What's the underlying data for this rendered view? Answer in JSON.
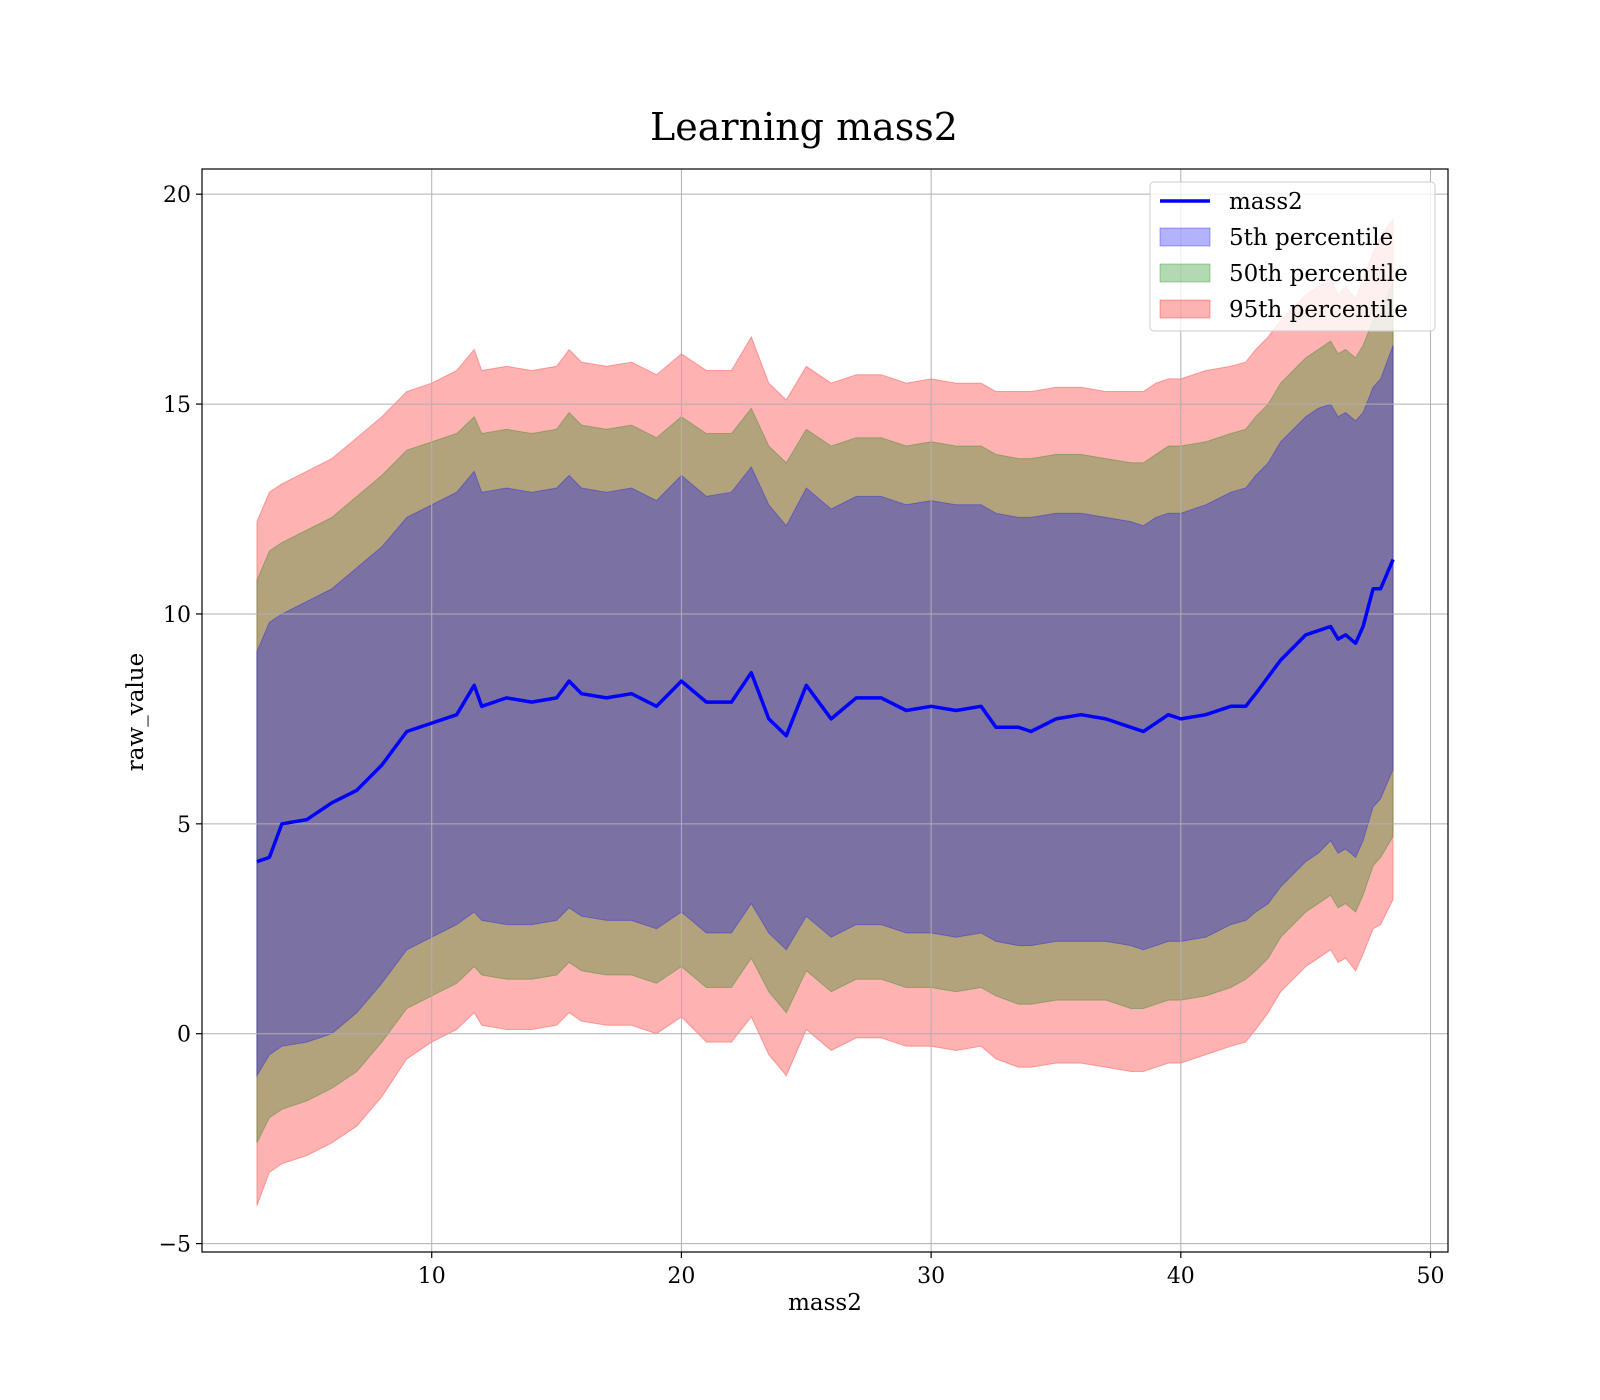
{
  "chart_data": {
    "type": "line",
    "title": "Learning mass2",
    "xlabel": "mass2",
    "ylabel": "raw_value",
    "xlim": [
      0.8,
      50.7
    ],
    "ylim": [
      -5.2,
      20.6
    ],
    "xticks": [
      10,
      20,
      30,
      40,
      50
    ],
    "yticks": [
      -5,
      0,
      5,
      10,
      15,
      20
    ],
    "xtick_labels": [
      "10",
      "20",
      "30",
      "40",
      "50"
    ],
    "ytick_labels": [
      "−5",
      "0",
      "5",
      "10",
      "15",
      "20"
    ],
    "grid": true,
    "legend_position": "top-right",
    "x": [
      3.0,
      3.5,
      4.0,
      5.0,
      6.0,
      7.0,
      8.0,
      9.0,
      10.0,
      11.0,
      11.7,
      12.0,
      13.0,
      14.0,
      15.0,
      15.5,
      16.0,
      17.0,
      18.0,
      19.0,
      20.0,
      21.0,
      22.0,
      22.8,
      23.5,
      24.2,
      25.0,
      26.0,
      27.0,
      28.0,
      29.0,
      30.0,
      31.0,
      32.0,
      32.6,
      33.5,
      34.0,
      35.0,
      36.0,
      37.0,
      38.0,
      38.5,
      39.0,
      39.5,
      40.0,
      41.0,
      42.0,
      42.6,
      43.0,
      43.5,
      44.0,
      44.5,
      45.0,
      45.5,
      46.0,
      46.3,
      46.6,
      47.0,
      47.3,
      47.7,
      48.0,
      48.5
    ],
    "series": [
      {
        "name": "mass2",
        "color": "#0000ff",
        "values": [
          4.1,
          4.2,
          5.0,
          5.1,
          5.5,
          5.8,
          6.4,
          7.2,
          7.4,
          7.6,
          8.3,
          7.8,
          8.0,
          7.9,
          8.0,
          8.4,
          8.1,
          8.0,
          8.1,
          7.8,
          8.4,
          7.9,
          7.9,
          8.6,
          7.5,
          7.1,
          8.3,
          7.5,
          8.0,
          8.0,
          7.7,
          7.8,
          7.7,
          7.8,
          7.3,
          7.3,
          7.2,
          7.5,
          7.6,
          7.5,
          7.3,
          7.2,
          7.4,
          7.6,
          7.5,
          7.6,
          7.8,
          7.8,
          8.1,
          8.5,
          8.9,
          9.2,
          9.5,
          9.6,
          9.7,
          9.4,
          9.5,
          9.3,
          9.7,
          10.6,
          10.6,
          11.3
        ]
      }
    ],
    "bands": [
      {
        "name": "5th percentile",
        "color": "#0000ff",
        "lower": [
          -1.0,
          -0.5,
          -0.3,
          -0.2,
          0.0,
          0.5,
          1.2,
          2.0,
          2.3,
          2.6,
          2.9,
          2.7,
          2.6,
          2.6,
          2.7,
          3.0,
          2.8,
          2.7,
          2.7,
          2.5,
          2.9,
          2.4,
          2.4,
          3.1,
          2.4,
          2.0,
          2.8,
          2.3,
          2.6,
          2.6,
          2.4,
          2.4,
          2.3,
          2.4,
          2.2,
          2.1,
          2.1,
          2.2,
          2.2,
          2.2,
          2.1,
          2.0,
          2.1,
          2.2,
          2.2,
          2.3,
          2.6,
          2.7,
          2.9,
          3.1,
          3.5,
          3.8,
          4.1,
          4.3,
          4.6,
          4.3,
          4.4,
          4.2,
          4.6,
          5.4,
          5.6,
          6.3
        ],
        "upper": [
          9.1,
          9.8,
          10.0,
          10.3,
          10.6,
          11.1,
          11.6,
          12.3,
          12.6,
          12.9,
          13.4,
          12.9,
          13.0,
          12.9,
          13.0,
          13.3,
          13.0,
          12.9,
          13.0,
          12.7,
          13.3,
          12.8,
          12.9,
          13.5,
          12.6,
          12.1,
          13.0,
          12.5,
          12.8,
          12.8,
          12.6,
          12.7,
          12.6,
          12.6,
          12.4,
          12.3,
          12.3,
          12.4,
          12.4,
          12.3,
          12.2,
          12.1,
          12.3,
          12.4,
          12.4,
          12.6,
          12.9,
          13.0,
          13.3,
          13.6,
          14.1,
          14.4,
          14.7,
          14.9,
          15.0,
          14.7,
          14.8,
          14.6,
          14.8,
          15.4,
          15.6,
          16.4
        ]
      },
      {
        "name": "50th percentile",
        "color": "#008000",
        "lower": [
          -2.6,
          -2.0,
          -1.8,
          -1.6,
          -1.3,
          -0.9,
          -0.2,
          0.6,
          0.9,
          1.2,
          1.6,
          1.4,
          1.3,
          1.3,
          1.4,
          1.7,
          1.5,
          1.4,
          1.4,
          1.2,
          1.6,
          1.1,
          1.1,
          1.8,
          1.0,
          0.5,
          1.5,
          1.0,
          1.3,
          1.3,
          1.1,
          1.1,
          1.0,
          1.1,
          0.9,
          0.7,
          0.7,
          0.8,
          0.8,
          0.8,
          0.6,
          0.6,
          0.7,
          0.8,
          0.8,
          0.9,
          1.1,
          1.3,
          1.5,
          1.8,
          2.3,
          2.6,
          2.9,
          3.1,
          3.3,
          3.0,
          3.1,
          2.9,
          3.3,
          4.0,
          4.2,
          4.7
        ],
        "upper": [
          10.8,
          11.5,
          11.7,
          12.0,
          12.3,
          12.8,
          13.3,
          13.9,
          14.1,
          14.3,
          14.7,
          14.3,
          14.4,
          14.3,
          14.4,
          14.8,
          14.5,
          14.4,
          14.5,
          14.2,
          14.7,
          14.3,
          14.3,
          14.9,
          14.0,
          13.6,
          14.4,
          14.0,
          14.2,
          14.2,
          14.0,
          14.1,
          14.0,
          14.0,
          13.8,
          13.7,
          13.7,
          13.8,
          13.8,
          13.7,
          13.6,
          13.6,
          13.8,
          14.0,
          14.0,
          14.1,
          14.3,
          14.4,
          14.7,
          15.0,
          15.5,
          15.8,
          16.1,
          16.3,
          16.5,
          16.2,
          16.3,
          16.1,
          16.4,
          17.0,
          17.2,
          17.9
        ]
      },
      {
        "name": "95th percentile",
        "color": "#ff0000",
        "lower": [
          -4.1,
          -3.3,
          -3.1,
          -2.9,
          -2.6,
          -2.2,
          -1.5,
          -0.6,
          -0.2,
          0.1,
          0.5,
          0.2,
          0.1,
          0.1,
          0.2,
          0.5,
          0.3,
          0.2,
          0.2,
          0.0,
          0.4,
          -0.2,
          -0.2,
          0.4,
          -0.5,
          -1.0,
          0.1,
          -0.4,
          -0.1,
          -0.1,
          -0.3,
          -0.3,
          -0.4,
          -0.3,
          -0.6,
          -0.8,
          -0.8,
          -0.7,
          -0.7,
          -0.8,
          -0.9,
          -0.9,
          -0.8,
          -0.7,
          -0.7,
          -0.5,
          -0.3,
          -0.2,
          0.1,
          0.5,
          1.0,
          1.3,
          1.6,
          1.8,
          2.0,
          1.7,
          1.8,
          1.5,
          1.9,
          2.5,
          2.6,
          3.2
        ],
        "upper": [
          12.2,
          12.9,
          13.1,
          13.4,
          13.7,
          14.2,
          14.7,
          15.3,
          15.5,
          15.8,
          16.3,
          15.8,
          15.9,
          15.8,
          15.9,
          16.3,
          16.0,
          15.9,
          16.0,
          15.7,
          16.2,
          15.8,
          15.8,
          16.6,
          15.5,
          15.1,
          15.9,
          15.5,
          15.7,
          15.7,
          15.5,
          15.6,
          15.5,
          15.5,
          15.3,
          15.3,
          15.3,
          15.4,
          15.4,
          15.3,
          15.3,
          15.3,
          15.5,
          15.6,
          15.6,
          15.8,
          15.9,
          16.0,
          16.3,
          16.6,
          17.0,
          17.3,
          17.6,
          17.8,
          18.0,
          17.6,
          17.8,
          17.5,
          18.0,
          18.6,
          19.0,
          19.4
        ]
      }
    ]
  }
}
